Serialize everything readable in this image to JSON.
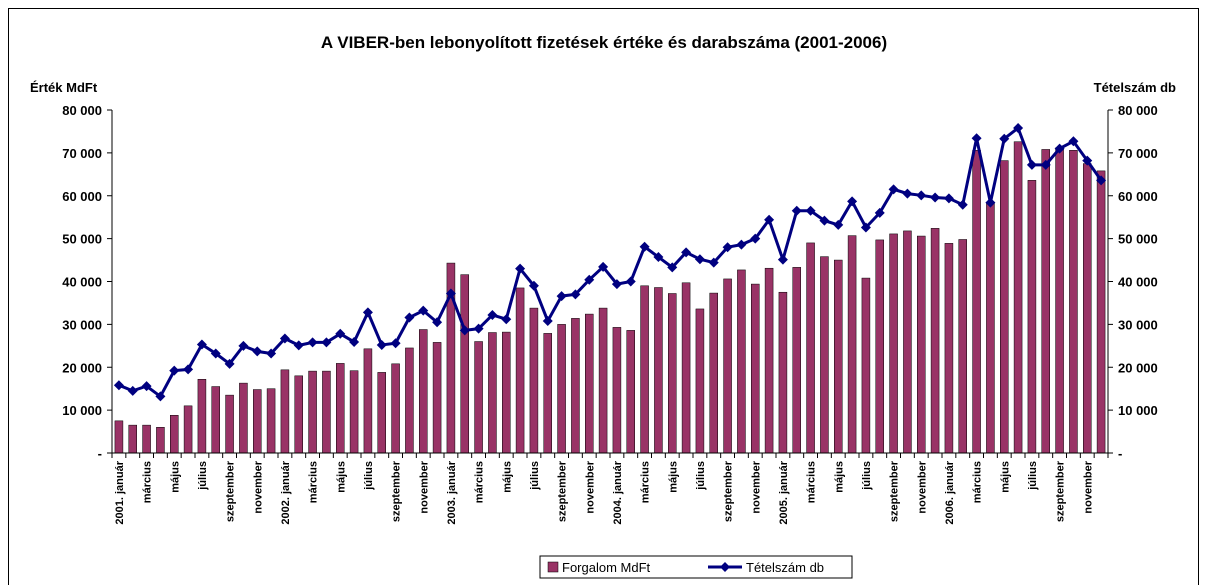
{
  "chart_data": {
    "type": "bar_line",
    "title": "A VIBER-ben lebonyolított fizetések értéke és darabszáma (2001-2006)",
    "y_label": "Érték MdFt",
    "y2_label": "Tételszám db",
    "categories": [
      "2001. január",
      null,
      "március",
      null,
      "május",
      null,
      "július",
      null,
      "szeptember",
      null,
      "november",
      null,
      "2002. január",
      null,
      "március",
      null,
      "május",
      null,
      "július",
      null,
      "szeptember",
      null,
      "november",
      null,
      "2003. január",
      null,
      "március",
      null,
      "május",
      null,
      "július",
      null,
      "szeptember",
      null,
      "november",
      null,
      "2004. január",
      null,
      "március",
      null,
      "május",
      null,
      "július",
      null,
      "szeptember",
      null,
      "november",
      null,
      "2005. január",
      null,
      "március",
      null,
      "május",
      null,
      "július",
      null,
      "szeptember",
      null,
      "november",
      null,
      "2006. január",
      null,
      "március",
      null,
      "május",
      null,
      "július",
      null,
      "szeptember",
      null,
      "november",
      null
    ],
    "series": [
      {
        "name": "Forgalom MdFt",
        "type": "bar",
        "color": "#993366",
        "values": [
          7500,
          6500,
          6500,
          6000,
          8800,
          11000,
          17200,
          15500,
          13500,
          16300,
          14800,
          15000,
          19400,
          18000,
          19100,
          19100,
          20900,
          19200,
          24300,
          18800,
          20800,
          24500,
          28800,
          25800,
          44300,
          41600,
          26000,
          28100,
          28200,
          38500,
          33800,
          27900,
          30000,
          31400,
          32400,
          33800,
          29300,
          28600,
          39000,
          38600,
          37200,
          39700,
          33600,
          37300,
          40600,
          42700,
          39400,
          43100,
          37500,
          43300,
          49000,
          45800,
          45000,
          50700,
          40800,
          49700,
          51100,
          51800,
          50600,
          52400,
          48900,
          49800,
          70600,
          58500,
          68200,
          72600,
          63600,
          70800,
          71200,
          70600,
          67500,
          65800
        ]
      },
      {
        "name": "Tételszám db",
        "type": "line",
        "axis": "y2",
        "color": "#000080",
        "values": [
          15800,
          14500,
          15600,
          13200,
          19200,
          19500,
          25300,
          23200,
          20800,
          25000,
          23700,
          23200,
          26700,
          25100,
          25800,
          25800,
          27800,
          25900,
          32800,
          25200,
          25600,
          31600,
          33200,
          30500,
          37200,
          28600,
          29000,
          32200,
          31200,
          43000,
          39000,
          30800,
          36600,
          37000,
          40400,
          43400,
          39400,
          40000,
          48100,
          45700,
          43300,
          46800,
          45200,
          44400,
          48000,
          48600,
          50000,
          54400,
          45100,
          56500,
          56500,
          54200,
          53200,
          58700,
          52600,
          56000,
          61500,
          60500,
          60100,
          59600,
          59400,
          57900,
          73400,
          58400,
          73300,
          75800,
          67200,
          67200,
          71000,
          72700,
          68200,
          63600
        ]
      }
    ],
    "ylim": [
      0,
      80000
    ],
    "yticks": [
      {
        "value": 0,
        "label": "-"
      },
      {
        "value": 10000,
        "label": "10 000"
      },
      {
        "value": 20000,
        "label": "20 000"
      },
      {
        "value": 30000,
        "label": "30 000"
      },
      {
        "value": 40000,
        "label": "40 000"
      },
      {
        "value": 50000,
        "label": "50 000"
      },
      {
        "value": 60000,
        "label": "60 000"
      },
      {
        "value": 70000,
        "label": "70 000"
      },
      {
        "value": 80000,
        "label": "80 000"
      }
    ],
    "y2lim": [
      0,
      80000
    ],
    "y2ticks": [
      {
        "value": 0,
        "label": "-"
      },
      {
        "value": 10000,
        "label": "10 000"
      },
      {
        "value": 20000,
        "label": "20 000"
      },
      {
        "value": 30000,
        "label": "30 000"
      },
      {
        "value": 40000,
        "label": "40 000"
      },
      {
        "value": 50000,
        "label": "50 000"
      },
      {
        "value": 60000,
        "label": "60 000"
      },
      {
        "value": 70000,
        "label": "70 000"
      },
      {
        "value": 80000,
        "label": "80 000"
      }
    ],
    "grid": false,
    "legend": "bottom"
  }
}
